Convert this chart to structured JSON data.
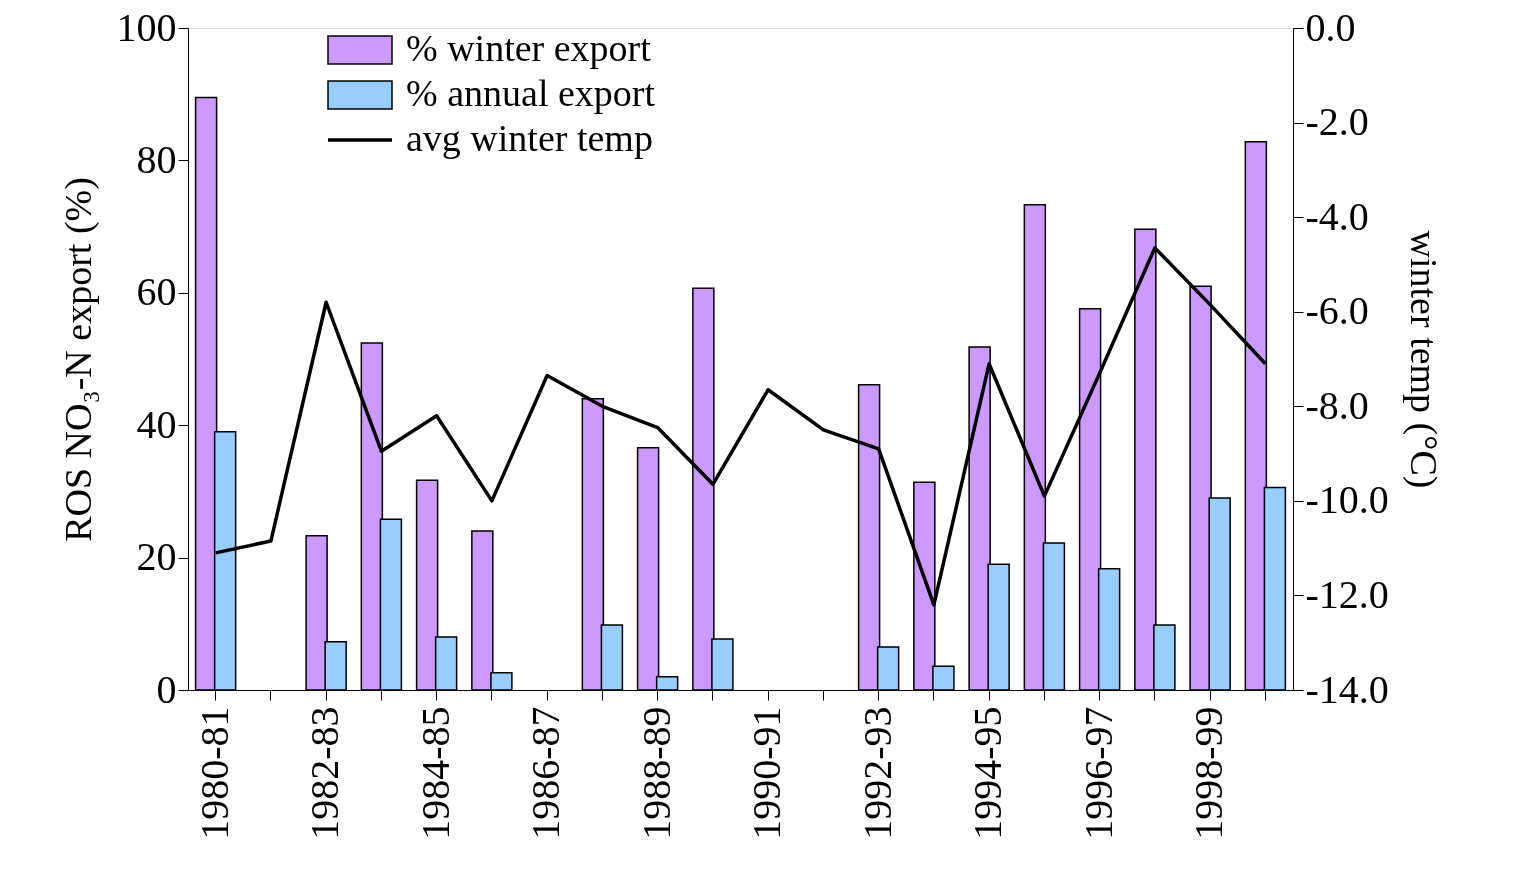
{
  "chart_data": {
    "type": "bar",
    "ylabel": "ROS NO₃-N export (%)",
    "y2label": "winter temp (°C)",
    "categories": [
      "1980-81",
      null,
      "1982-83",
      null,
      "1984-85",
      null,
      "1986-87",
      null,
      "1988-89",
      null,
      "1990-91",
      null,
      "1992-93",
      null,
      "1994-95",
      null,
      "1996-97",
      null,
      "1998-99",
      null
    ],
    "series": [
      {
        "name": "% winter export",
        "color": "#cc99ff",
        "values": [
          89.5,
          null,
          23.3,
          52.4,
          31.7,
          24.0,
          null,
          44.0,
          36.6,
          60.7,
          null,
          null,
          46.1,
          31.4,
          51.8,
          73.3,
          57.6,
          69.6,
          61.0,
          82.8
        ]
      },
      {
        "name": "% annual export",
        "color": "#99ccff",
        "values": [
          39.0,
          null,
          7.3,
          25.8,
          8.0,
          2.6,
          null,
          9.8,
          2.0,
          7.7,
          null,
          null,
          6.5,
          3.6,
          19.0,
          22.2,
          18.3,
          9.8,
          29.0,
          30.6
        ]
      },
      {
        "name": "avg winter temp",
        "type": "line",
        "axis": "y2",
        "color": "#000000",
        "values": [
          -11.1,
          -10.85,
          -5.8,
          -8.95,
          -8.2,
          -10.0,
          -7.35,
          -8.0,
          -8.45,
          -9.65,
          -7.65,
          -8.5,
          -8.9,
          -12.2,
          -7.1,
          -9.9,
          -7.3,
          -4.65,
          -5.85,
          -7.1
        ]
      }
    ],
    "ylim": [
      0,
      100
    ],
    "yticks": [
      0,
      20,
      40,
      60,
      80,
      100
    ],
    "y2lim": [
      -14,
      0
    ],
    "y2ticks": [
      {
        "value": 0,
        "label": "0.0"
      },
      {
        "value": -2,
        "label": "-2.0"
      },
      {
        "value": -4,
        "label": "-4.0"
      },
      {
        "value": -6,
        "label": "-6.0"
      },
      {
        "value": -8,
        "label": "-8.0"
      },
      {
        "value": -10,
        "label": "-10.0"
      },
      {
        "value": -12,
        "label": "-12.0"
      },
      {
        "value": -14,
        "label": "-14.0"
      }
    ],
    "grid": false,
    "legend": "top left",
    "marker": "none",
    "line_style": "solid"
  }
}
